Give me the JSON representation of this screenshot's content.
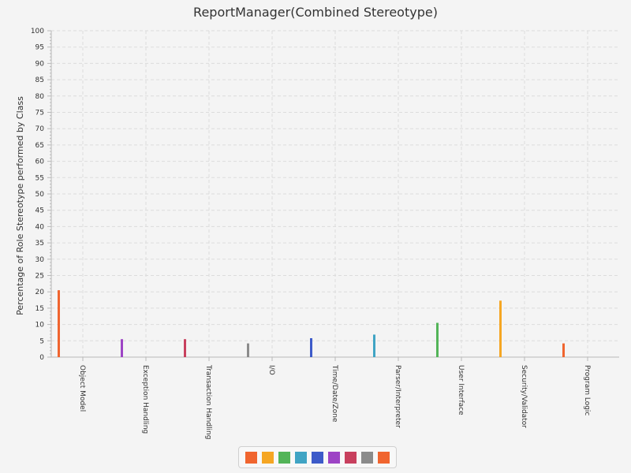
{
  "chart_data": {
    "type": "bar",
    "title": "ReportManager(Combined Stereotype)",
    "xlabel": "",
    "ylabel": "Percentage of Role Stereotype performed by Class",
    "ylim": [
      0,
      100
    ],
    "ytick_step": 5,
    "grid": true,
    "legend_position": "bottom-center",
    "categories": [
      "Object Model",
      "Exception Handling",
      "Transaction Handling",
      "I/O",
      "Time/Date/Zone",
      "Parser/Interpreter",
      "User Interface",
      "Security/Validator",
      "Program Logic"
    ],
    "values": [
      20.5,
      5.5,
      5.5,
      4.2,
      5.8,
      6.9,
      10.5,
      17.3,
      4.2
    ],
    "colors": [
      "#f0652f",
      "#9d44c5",
      "#c8405e",
      "#8b8b8b",
      "#3d5bc9",
      "#40a4c4",
      "#53b458",
      "#f5a623",
      "#f0652f"
    ],
    "legend_colors": [
      "#f0652f",
      "#f5a623",
      "#53b458",
      "#40a4c4",
      "#3d5bc9",
      "#9d44c5",
      "#c8405e",
      "#8b8b8b",
      "#f0652f"
    ]
  }
}
